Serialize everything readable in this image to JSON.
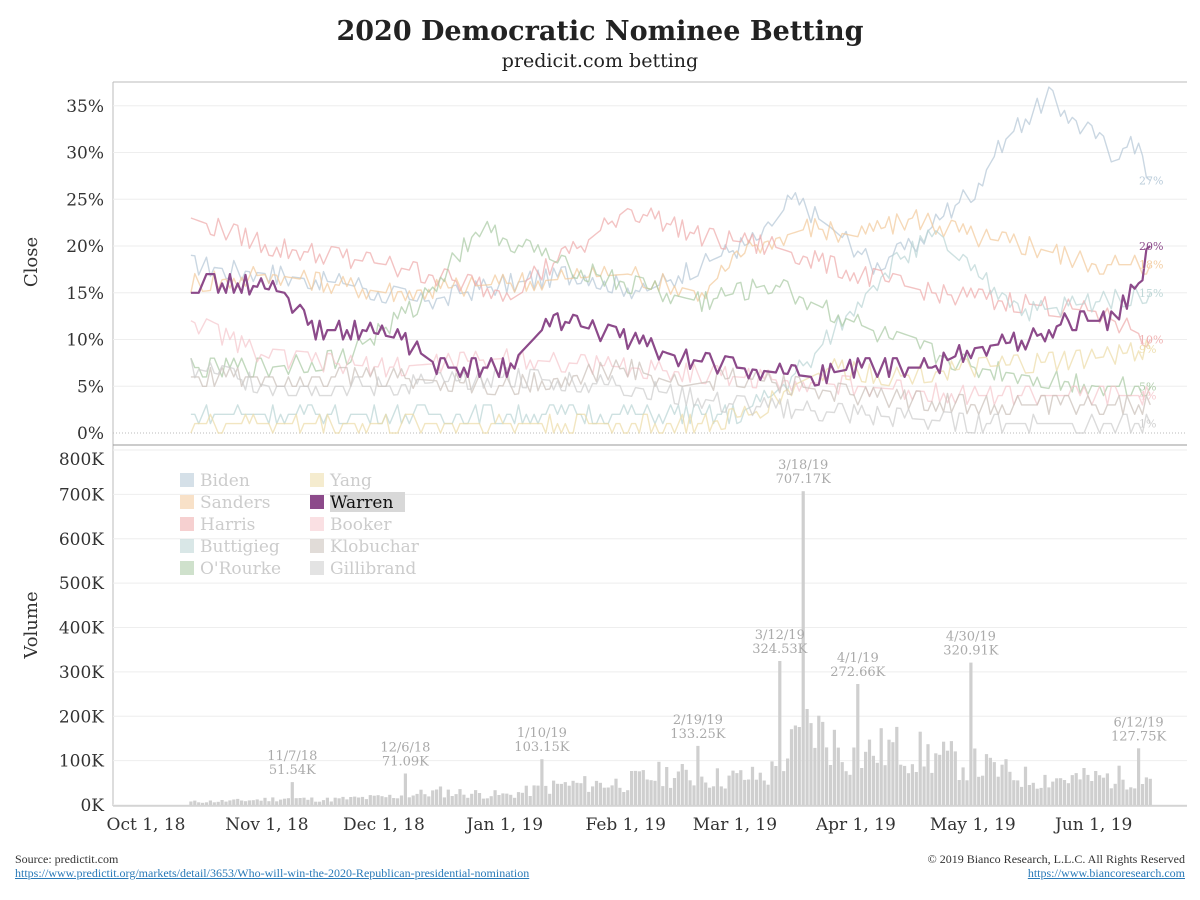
{
  "header": {
    "title": "2020 Democratic Nominee Betting",
    "subtitle": "predicit.com betting"
  },
  "footer": {
    "source_label": "Source: predictit.com",
    "source_link": "https://www.predictit.org/markets/detail/3653/Who-will-win-the-2020-Republican-presidential-nomination",
    "copyright": "© 2019 Bianco Research, L.L.C. All Rights Reserved",
    "site_link": "https://www.biancoresearch.com"
  },
  "colors": {
    "Biden": "#b3c6d6",
    "Sanders": "#f2c99a",
    "Harris": "#eeaaaa",
    "Buttigieg": "#b9d4d4",
    "O'Rourke": "#a8c9a3",
    "Yang": "#ecdca7",
    "Warren": "#8c4a8a",
    "Booker": "#f5c6cc",
    "Klobuchar": "#c9bfb8",
    "Gillibrand": "#cccccc",
    "volume": "#cfcfcf",
    "highlight": "#8c4a8a"
  },
  "chart_data": [
    {
      "type": "line",
      "ylabel": "Close",
      "ylim": [
        0,
        37
      ],
      "yticks": [
        "0%",
        "5%",
        "10%",
        "15%",
        "20%",
        "25%",
        "30%",
        "35%"
      ],
      "ytick_values": [
        0,
        5,
        10,
        15,
        20,
        25,
        30,
        35
      ],
      "xticks": [
        "Oct 1, 18",
        "Nov 1, 18",
        "Dec 1, 18",
        "Jan 1, 19",
        "Feb 1, 19",
        "Mar 1, 19",
        "Apr 1, 19",
        "May 1, 19",
        "Jun 1, 19"
      ],
      "xtick_dates": [
        "2018-10-01",
        "2018-11-01",
        "2018-12-01",
        "2019-01-01",
        "2019-02-01",
        "2019-03-01",
        "2019-04-01",
        "2019-05-01",
        "2019-06-01"
      ],
      "x_range": [
        "2018-09-20",
        "2019-06-28"
      ],
      "highlight": "Warren",
      "series": [
        {
          "name": "Biden",
          "x": [
            "2018-10-12",
            "2018-11-01",
            "2018-11-20",
            "2018-12-10",
            "2019-01-01",
            "2019-01-20",
            "2019-02-05",
            "2019-02-20",
            "2019-03-08",
            "2019-03-15",
            "2019-03-25",
            "2019-04-05",
            "2019-04-15",
            "2019-04-25",
            "2019-05-01",
            "2019-05-08",
            "2019-05-15",
            "2019-05-20",
            "2019-05-28",
            "2019-06-05",
            "2019-06-12",
            "2019-06-15"
          ],
          "values": [
            18,
            17,
            16,
            14,
            16,
            17,
            15,
            18,
            21,
            25,
            22,
            18,
            20,
            24,
            26,
            31,
            34,
            36,
            33,
            30,
            31,
            27
          ]
        },
        {
          "name": "Sanders",
          "x": [
            "2018-10-12",
            "2018-11-01",
            "2018-12-01",
            "2019-01-01",
            "2019-02-01",
            "2019-02-20",
            "2019-03-05",
            "2019-03-20",
            "2019-04-01",
            "2019-04-15",
            "2019-05-01",
            "2019-05-15",
            "2019-06-01",
            "2019-06-15"
          ],
          "values": [
            16,
            17,
            15,
            16,
            17,
            15,
            20,
            22,
            21,
            23,
            21,
            20,
            18,
            18
          ]
        },
        {
          "name": "Harris",
          "x": [
            "2018-10-12",
            "2018-11-01",
            "2018-12-01",
            "2019-01-01",
            "2019-01-20",
            "2019-02-01",
            "2019-02-20",
            "2019-03-10",
            "2019-04-01",
            "2019-04-20",
            "2019-05-10",
            "2019-06-01",
            "2019-06-15"
          ],
          "values": [
            23,
            20,
            18,
            15,
            20,
            24,
            21,
            20,
            17,
            15,
            14,
            13,
            10
          ]
        },
        {
          "name": "Buttigieg",
          "x": [
            "2018-10-12",
            "2018-12-01",
            "2019-01-01",
            "2019-02-01",
            "2019-03-01",
            "2019-03-10",
            "2019-03-20",
            "2019-04-01",
            "2019-04-10",
            "2019-04-20",
            "2019-05-01",
            "2019-05-15",
            "2019-06-01",
            "2019-06-15"
          ],
          "values": [
            2,
            2,
            2,
            2,
            2,
            4,
            8,
            14,
            18,
            21,
            17,
            13,
            14,
            15
          ]
        },
        {
          "name": "O'Rourke",
          "x": [
            "2018-10-12",
            "2018-11-01",
            "2018-11-20",
            "2018-12-10",
            "2018-12-25",
            "2019-01-15",
            "2019-02-01",
            "2019-02-20",
            "2019-03-10",
            "2019-03-25",
            "2019-04-10",
            "2019-05-01",
            "2019-06-01",
            "2019-06-15"
          ],
          "values": [
            7,
            7,
            8,
            14,
            22,
            18,
            16,
            14,
            16,
            13,
            10,
            7,
            5,
            5
          ]
        },
        {
          "name": "Yang",
          "x": [
            "2018-10-12",
            "2019-02-01",
            "2019-02-20",
            "2019-03-05",
            "2019-03-15",
            "2019-03-25",
            "2019-04-10",
            "2019-05-01",
            "2019-06-01",
            "2019-06-15"
          ],
          "values": [
            1,
            1,
            1,
            2,
            5,
            7,
            6,
            7,
            8,
            9
          ]
        },
        {
          "name": "Warren",
          "x": [
            "2018-10-12",
            "2018-10-25",
            "2018-11-05",
            "2018-11-12",
            "2018-11-25",
            "2018-12-05",
            "2018-12-15",
            "2019-01-01",
            "2019-01-10",
            "2019-01-15",
            "2019-02-01",
            "2019-02-15",
            "2019-03-01",
            "2019-03-20",
            "2019-04-01",
            "2019-04-20",
            "2019-04-30",
            "2019-05-15",
            "2019-05-25",
            "2019-06-05",
            "2019-06-12",
            "2019-06-15"
          ],
          "values": [
            16,
            16,
            15,
            11,
            11,
            10,
            7,
            7,
            11,
            12,
            10,
            8,
            7,
            6,
            7,
            7,
            9,
            10,
            12,
            12,
            16,
            20
          ]
        },
        {
          "name": "Booker",
          "x": [
            "2018-10-12",
            "2018-11-01",
            "2018-12-01",
            "2019-01-01",
            "2019-02-01",
            "2019-03-01",
            "2019-04-01",
            "2019-05-01",
            "2019-06-01",
            "2019-06-15"
          ],
          "values": [
            12,
            8,
            7,
            8,
            7,
            6,
            5,
            4,
            4,
            4
          ]
        },
        {
          "name": "Klobuchar",
          "x": [
            "2018-10-12",
            "2018-12-01",
            "2019-01-01",
            "2019-02-01",
            "2019-02-15",
            "2019-03-01",
            "2019-04-01",
            "2019-05-01",
            "2019-06-01",
            "2019-06-15"
          ],
          "values": [
            6,
            6,
            5,
            7,
            5,
            6,
            4,
            3,
            3,
            3
          ]
        },
        {
          "name": "Gillibrand",
          "x": [
            "2018-10-12",
            "2018-11-01",
            "2018-12-01",
            "2019-01-01",
            "2019-02-01",
            "2019-03-01",
            "2019-04-01",
            "2019-05-01",
            "2019-06-01",
            "2019-06-15"
          ],
          "values": [
            7,
            5,
            5,
            6,
            5,
            3,
            2,
            1,
            1,
            1
          ]
        }
      ],
      "end_labels": [
        {
          "text": "27%",
          "value": 27,
          "series": "Biden"
        },
        {
          "text": "20%",
          "value": 20,
          "series": "Warren"
        },
        {
          "text": "18%",
          "value": 18,
          "series": "Sanders"
        },
        {
          "text": "15%",
          "value": 15,
          "series": "Buttigieg"
        },
        {
          "text": "10%",
          "value": 10,
          "series": "Harris"
        },
        {
          "text": "9%",
          "value": 9,
          "series": "Yang"
        },
        {
          "text": "5%",
          "value": 5,
          "series": "O'Rourke"
        },
        {
          "text": "4%",
          "value": 4,
          "series": "Booker"
        },
        {
          "text": "1%",
          "value": 1,
          "series": "Gillibrand"
        }
      ],
      "legend": {
        "placement": "upper-left of volume panel",
        "col1": [
          "Biden",
          "Sanders",
          "Harris",
          "Buttigieg",
          "O'Rourke"
        ],
        "col2": [
          "Yang",
          "Warren",
          "Booker",
          "Klobuchar",
          "Gillibrand"
        ]
      }
    },
    {
      "type": "bar",
      "ylabel": "Volume",
      "ylim": [
        0,
        800000
      ],
      "yticks": [
        "0K",
        "100K",
        "200K",
        "300K",
        "400K",
        "500K",
        "600K",
        "700K",
        "800K"
      ],
      "ytick_values": [
        0,
        100000,
        200000,
        300000,
        400000,
        500000,
        600000,
        700000,
        800000
      ],
      "x_range": [
        "2018-09-20",
        "2019-06-28"
      ],
      "profile": {
        "x": [
          "2018-10-12",
          "2018-10-25",
          "2018-11-05",
          "2018-11-15",
          "2018-12-01",
          "2018-12-15",
          "2019-01-01",
          "2019-01-15",
          "2019-01-31",
          "2019-02-10",
          "2019-02-25",
          "2019-03-09",
          "2019-03-20",
          "2019-03-30",
          "2019-04-10",
          "2019-04-20",
          "2019-05-01",
          "2019-05-15",
          "2019-06-01",
          "2019-06-15"
        ],
        "values": [
          7000,
          10000,
          15000,
          12000,
          18000,
          30000,
          22000,
          45000,
          50000,
          70000,
          60000,
          65000,
          180000,
          110000,
          130000,
          110000,
          90000,
          60000,
          60000,
          65000
        ]
      },
      "annotations": [
        {
          "label": "11/7/18",
          "value_label": "51.54K",
          "date": "2018-11-07",
          "value": 51540
        },
        {
          "label": "12/6/18",
          "value_label": "71.09K",
          "date": "2018-12-06",
          "value": 71090
        },
        {
          "label": "1/10/19",
          "value_label": "103.15K",
          "date": "2019-01-10",
          "value": 103150
        },
        {
          "label": "2/19/19",
          "value_label": "133.25K",
          "date": "2019-02-19",
          "value": 133250
        },
        {
          "label": "3/12/19",
          "value_label": "324.53K",
          "date": "2019-03-12",
          "value": 324530
        },
        {
          "label": "3/18/19",
          "value_label": "707.17K",
          "date": "2019-03-18",
          "value": 707170
        },
        {
          "label": "4/1/19",
          "value_label": "272.66K",
          "date": "2019-04-01",
          "value": 272660
        },
        {
          "label": "4/30/19",
          "value_label": "320.91K",
          "date": "2019-04-30",
          "value": 320910
        },
        {
          "label": "6/12/19",
          "value_label": "127.75K",
          "date": "2019-06-12",
          "value": 127750
        }
      ]
    }
  ]
}
